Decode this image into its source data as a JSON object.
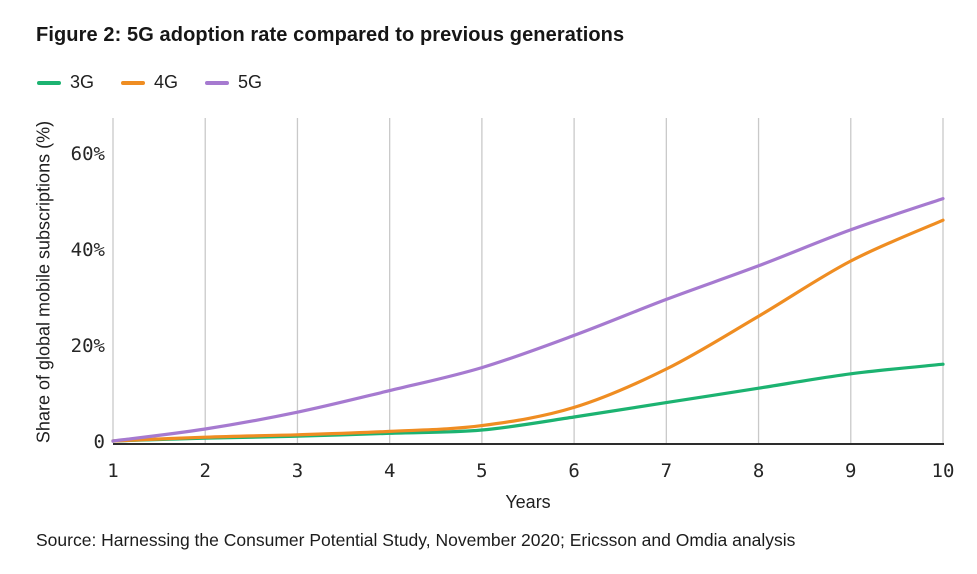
{
  "figure": {
    "title": "Figure 2: 5G adoption rate compared to previous generations",
    "source": "Source: Harnessing the Consumer Potential Study, November 2020; Ericsson and Omdia analysis"
  },
  "chart_data": {
    "type": "line",
    "title": "Figure 2: 5G adoption rate compared to previous generations",
    "xlabel": "Years",
    "ylabel": "Share of global mobile subscriptions (%)",
    "xlim": [
      1,
      10
    ],
    "ylim": [
      0,
      67
    ],
    "grid": "vertical-only",
    "legend_position": "top-left",
    "x_ticks": [
      1,
      2,
      3,
      4,
      5,
      6,
      7,
      8,
      9,
      10
    ],
    "y_ticks": [
      {
        "value": 0,
        "label": "0"
      },
      {
        "value": 20,
        "label": "20%"
      },
      {
        "value": 40,
        "label": "40%"
      },
      {
        "value": 60,
        "label": "60%"
      }
    ],
    "x": [
      1,
      2,
      3,
      4,
      5,
      6,
      7,
      8,
      9,
      10
    ],
    "series": [
      {
        "name": "3G",
        "color": "#1cb371",
        "values": [
          0,
          0.6,
          1.0,
          1.6,
          2.3,
          5.0,
          8.0,
          11.0,
          14.0,
          16.0
        ]
      },
      {
        "name": "4G",
        "color": "#ef8d22",
        "values": [
          0,
          0.8,
          1.3,
          2.0,
          3.2,
          7.0,
          15.0,
          26.0,
          37.5,
          46.0
        ]
      },
      {
        "name": "5G",
        "color": "#a67ad0",
        "values": [
          0,
          2.5,
          6.0,
          10.5,
          15.3,
          22.0,
          29.5,
          36.5,
          44.0,
          50.5
        ]
      }
    ],
    "axis_colors": {
      "gridline": "#c9c9c9",
      "axis_line": "#2d2d2d"
    }
  }
}
